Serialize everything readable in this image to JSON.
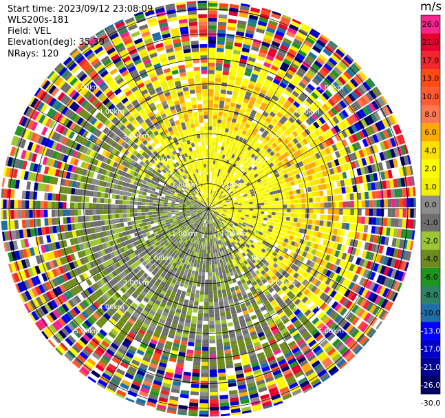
{
  "info": {
    "start_time": "Start time: 2023/09/12 23:08:09",
    "instrument": "WLS200s-181",
    "field": "Field: VEL",
    "elevation": "Elevation(deg): 35.30",
    "nrays": "NRays: 120"
  },
  "colorbar": {
    "unit": "m/s",
    "bins": [
      {
        "label": "26.0",
        "color": "#f5238c"
      },
      {
        "label": "21.0",
        "color": "#e6002d"
      },
      {
        "label": "17.0",
        "color": "#f0282d"
      },
      {
        "label": "13.0",
        "color": "#ff4b14"
      },
      {
        "label": "10.0",
        "color": "#ff5a32"
      },
      {
        "label": "8.0",
        "color": "#ff7850"
      },
      {
        "label": "6.0",
        "color": "#ffaa00"
      },
      {
        "label": "4.0",
        "color": "#ffe000"
      },
      {
        "label": "2.0",
        "color": "#ffff00"
      },
      {
        "label": "1.0",
        "color": "#f0f000"
      },
      {
        "label": "0.0",
        "color": "#8c8c8c"
      },
      {
        "label": "-1.0",
        "color": "#6e6e6e"
      },
      {
        "label": "-2.0",
        "color": "#9bc832"
      },
      {
        "label": "-4.0",
        "color": "#6e8c1e"
      },
      {
        "label": "-6.0",
        "color": "#1e961e"
      },
      {
        "label": "-8.0",
        "color": "#2d8264"
      },
      {
        "label": "-10.0",
        "color": "#1e6eaa"
      },
      {
        "label": "-13.0",
        "color": "#0000ff"
      },
      {
        "label": "-17.0",
        "color": "#0000c8"
      },
      {
        "label": "-21.0",
        "color": "#000096"
      },
      {
        "label": "-26.0",
        "color": "#000064"
      },
      {
        "label": "-30.0",
        "color": ""
      }
    ]
  },
  "range_rings": [
    {
      "label": "1.00km",
      "km": 1
    },
    {
      "label": "2.00km",
      "km": 2
    },
    {
      "label": "3.00km",
      "km": 3
    },
    {
      "label": "4.00km",
      "km": 4
    },
    {
      "label": "5.00km",
      "km": 5
    }
  ],
  "chart_data": {
    "type": "heatmap",
    "projection": "polar PPI",
    "field": "VEL",
    "unit": "m/s",
    "nrays": 120,
    "max_range_km": 5.0,
    "ring_labels_km": [
      "1.00km",
      "2.00km",
      "3.00km",
      "4.00km",
      "5.00km"
    ],
    "colorbar_ticks": [
      26.0,
      21.0,
      17.0,
      13.0,
      10.0,
      8.0,
      6.0,
      4.0,
      2.0,
      1.0,
      0.0,
      -1.0,
      -2.0,
      -4.0,
      -6.0,
      -8.0,
      -10.0,
      -13.0,
      -17.0,
      -21.0,
      -26.0,
      -30.0
    ],
    "dominant_pattern": "Near range (<2.5 km): 0 to 4 m/s (yellow) toward north/east, -1 to -4 m/s (grey/olive) toward south/west; far range (>3.5 km): noisy values spanning full -30 to 26 m/s scale"
  }
}
